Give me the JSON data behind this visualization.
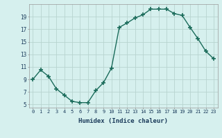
{
  "x": [
    0,
    1,
    2,
    3,
    4,
    5,
    6,
    7,
    8,
    9,
    10,
    11,
    12,
    13,
    14,
    15,
    16,
    17,
    18,
    19,
    20,
    21,
    22,
    23
  ],
  "y": [
    9.0,
    10.5,
    9.5,
    7.5,
    6.5,
    5.5,
    5.3,
    5.3,
    7.2,
    8.5,
    10.8,
    17.3,
    18.0,
    18.8,
    19.3,
    20.2,
    20.2,
    20.2,
    19.5,
    19.2,
    17.3,
    15.5,
    13.5,
    12.3
  ],
  "line_color": "#1a6b5a",
  "marker": "+",
  "marker_size": 4,
  "marker_lw": 1.2,
  "bg_color": "#d6f0ee",
  "grid_color": "#b8d4d0",
  "xlabel": "Humidex (Indice chaleur)",
  "xlim": [
    -0.5,
    23.5
  ],
  "ylim": [
    4.5,
    21.0
  ],
  "yticks": [
    5,
    7,
    9,
    11,
    13,
    15,
    17,
    19
  ],
  "xticks": [
    0,
    1,
    2,
    3,
    4,
    5,
    6,
    7,
    8,
    9,
    10,
    11,
    12,
    13,
    14,
    15,
    16,
    17,
    18,
    19,
    20,
    21,
    22,
    23
  ],
  "font_color": "#1a3a5a",
  "line_width": 1.0
}
